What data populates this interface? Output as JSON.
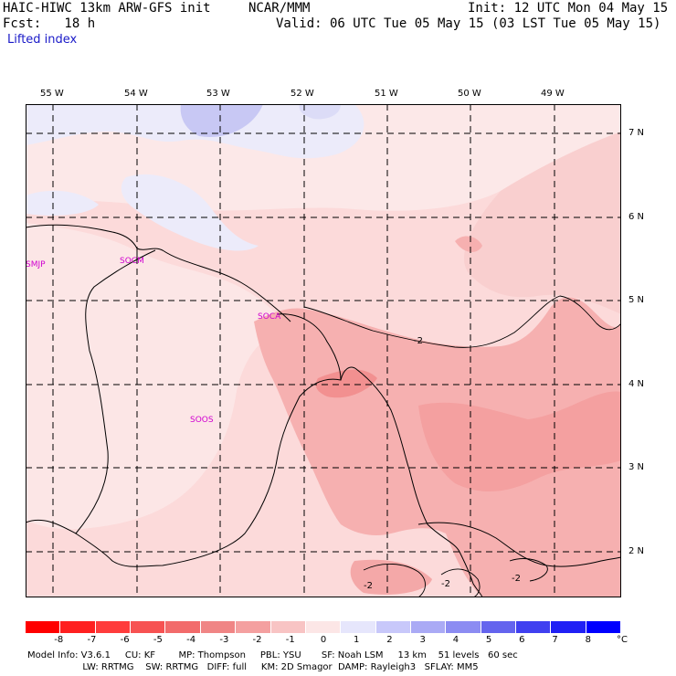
{
  "header": {
    "model_title": "HAIC-HIWC 13km ARW-GFS init",
    "org": "NCAR/MMM",
    "init": "Init: 12 UTC Mon 04 May 15",
    "fcst": "Fcst:   18 h",
    "valid": "Valid: 06 UTC Tue 05 May 15 (03 LST Tue 05 May 15)",
    "field": "Lifted index"
  },
  "map": {
    "lon_labels": [
      "55 W",
      "54 W",
      "53 W",
      "52 W",
      "51 W",
      "50 W",
      "49 W"
    ],
    "lat_labels": [
      "7 N",
      "6 N",
      "5 N",
      "4 N",
      "3 N",
      "2 N"
    ],
    "stations": [
      "SMJP",
      "SOCM",
      "SOCA",
      "SOOS"
    ],
    "contour_labels": [
      "-2",
      "-2",
      "-2",
      "-2"
    ]
  },
  "colorbar": {
    "unit": "°C",
    "ticks": [
      "-8",
      "-7",
      "-6",
      "-5",
      "-4",
      "-3",
      "-2",
      "-1",
      "0",
      "1",
      "2",
      "3",
      "4",
      "5",
      "6",
      "7",
      "8"
    ],
    "colors": [
      "#ff0000",
      "#ff2020",
      "#ff3c3c",
      "#f75252",
      "#f26b6b",
      "#f08585",
      "#f4a0a0",
      "#f8c4c4",
      "#fce6e6",
      "#e6e6fc",
      "#c8c8fa",
      "#aaaaf5",
      "#8c8cf2",
      "#6464ee",
      "#4040f0",
      "#2020f5",
      "#0000ff"
    ]
  },
  "footer": {
    "line1": "Model Info: V3.6.1     CU: KF        MP: Thompson     PBL: YSU       SF: Noah LSM     13 km    51 levels   60 sec",
    "line2": "                   LW: RRTMG    SW: RRTMG   DIFF: full     KM: 2D Smagor  DAMP: Rayleigh3   SFLAY: MM5"
  }
}
